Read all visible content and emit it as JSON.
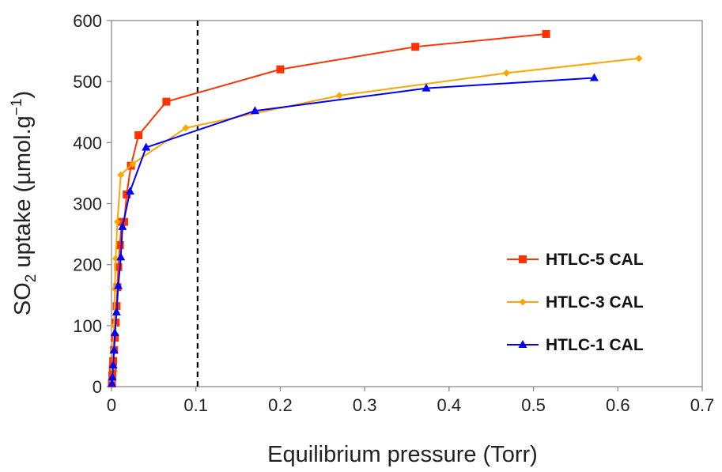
{
  "chart_data": {
    "type": "line",
    "xlabel": "Equilibrium pressure (Torr)",
    "ylabel": {
      "prefix": "SO",
      "sub": "2",
      "middle": " uptake (µmol.g",
      "sup": "−1",
      "suffix": ")"
    },
    "xlim": [
      0,
      0.7
    ],
    "ylim": [
      0,
      600
    ],
    "xticks": [
      "0",
      "0.1",
      "0.2",
      "0.3",
      "0.4",
      "0.5",
      "0.6",
      "0.7"
    ],
    "yticks": [
      "0",
      "100",
      "200",
      "300",
      "400",
      "500",
      "600"
    ],
    "grid": false,
    "legend_position": "center-right",
    "reference_line": {
      "x": 0.102,
      "style": "dashed",
      "color": "#000000"
    },
    "series": [
      {
        "name": "HTLC-5 CAL",
        "color": "#ff3300",
        "marker": "square",
        "x": [
          0.0005,
          0.001,
          0.0015,
          0.002,
          0.003,
          0.004,
          0.005,
          0.006,
          0.007,
          0.008,
          0.01,
          0.012,
          0.015,
          0.018,
          0.023,
          0.032,
          0.065,
          0.2,
          0.36,
          0.515
        ],
        "y": [
          5,
          18,
          30,
          42,
          60,
          80,
          105,
          132,
          163,
          196,
          232,
          270,
          270,
          315,
          362,
          412,
          467,
          520,
          557,
          578
        ]
      },
      {
        "name": "HTLC-3 CAL",
        "color": "#ffa500",
        "marker": "diamond",
        "x": [
          0.0005,
          0.001,
          0.002,
          0.003,
          0.004,
          0.005,
          0.007,
          0.011,
          0.025,
          0.088,
          0.27,
          0.468,
          0.625
        ],
        "y": [
          10,
          30,
          60,
          100,
          160,
          210,
          270,
          347,
          365,
          424,
          477,
          514,
          538
        ]
      },
      {
        "name": "HTLC-1 CAL",
        "color": "#0000ff",
        "marker": "triangle",
        "x": [
          0.0005,
          0.001,
          0.002,
          0.003,
          0.004,
          0.006,
          0.008,
          0.011,
          0.013,
          0.022,
          0.041,
          0.17,
          0.373,
          0.572
        ],
        "y": [
          5,
          15,
          35,
          60,
          88,
          122,
          165,
          212,
          262,
          320,
          392,
          452,
          489,
          506
        ]
      }
    ]
  }
}
